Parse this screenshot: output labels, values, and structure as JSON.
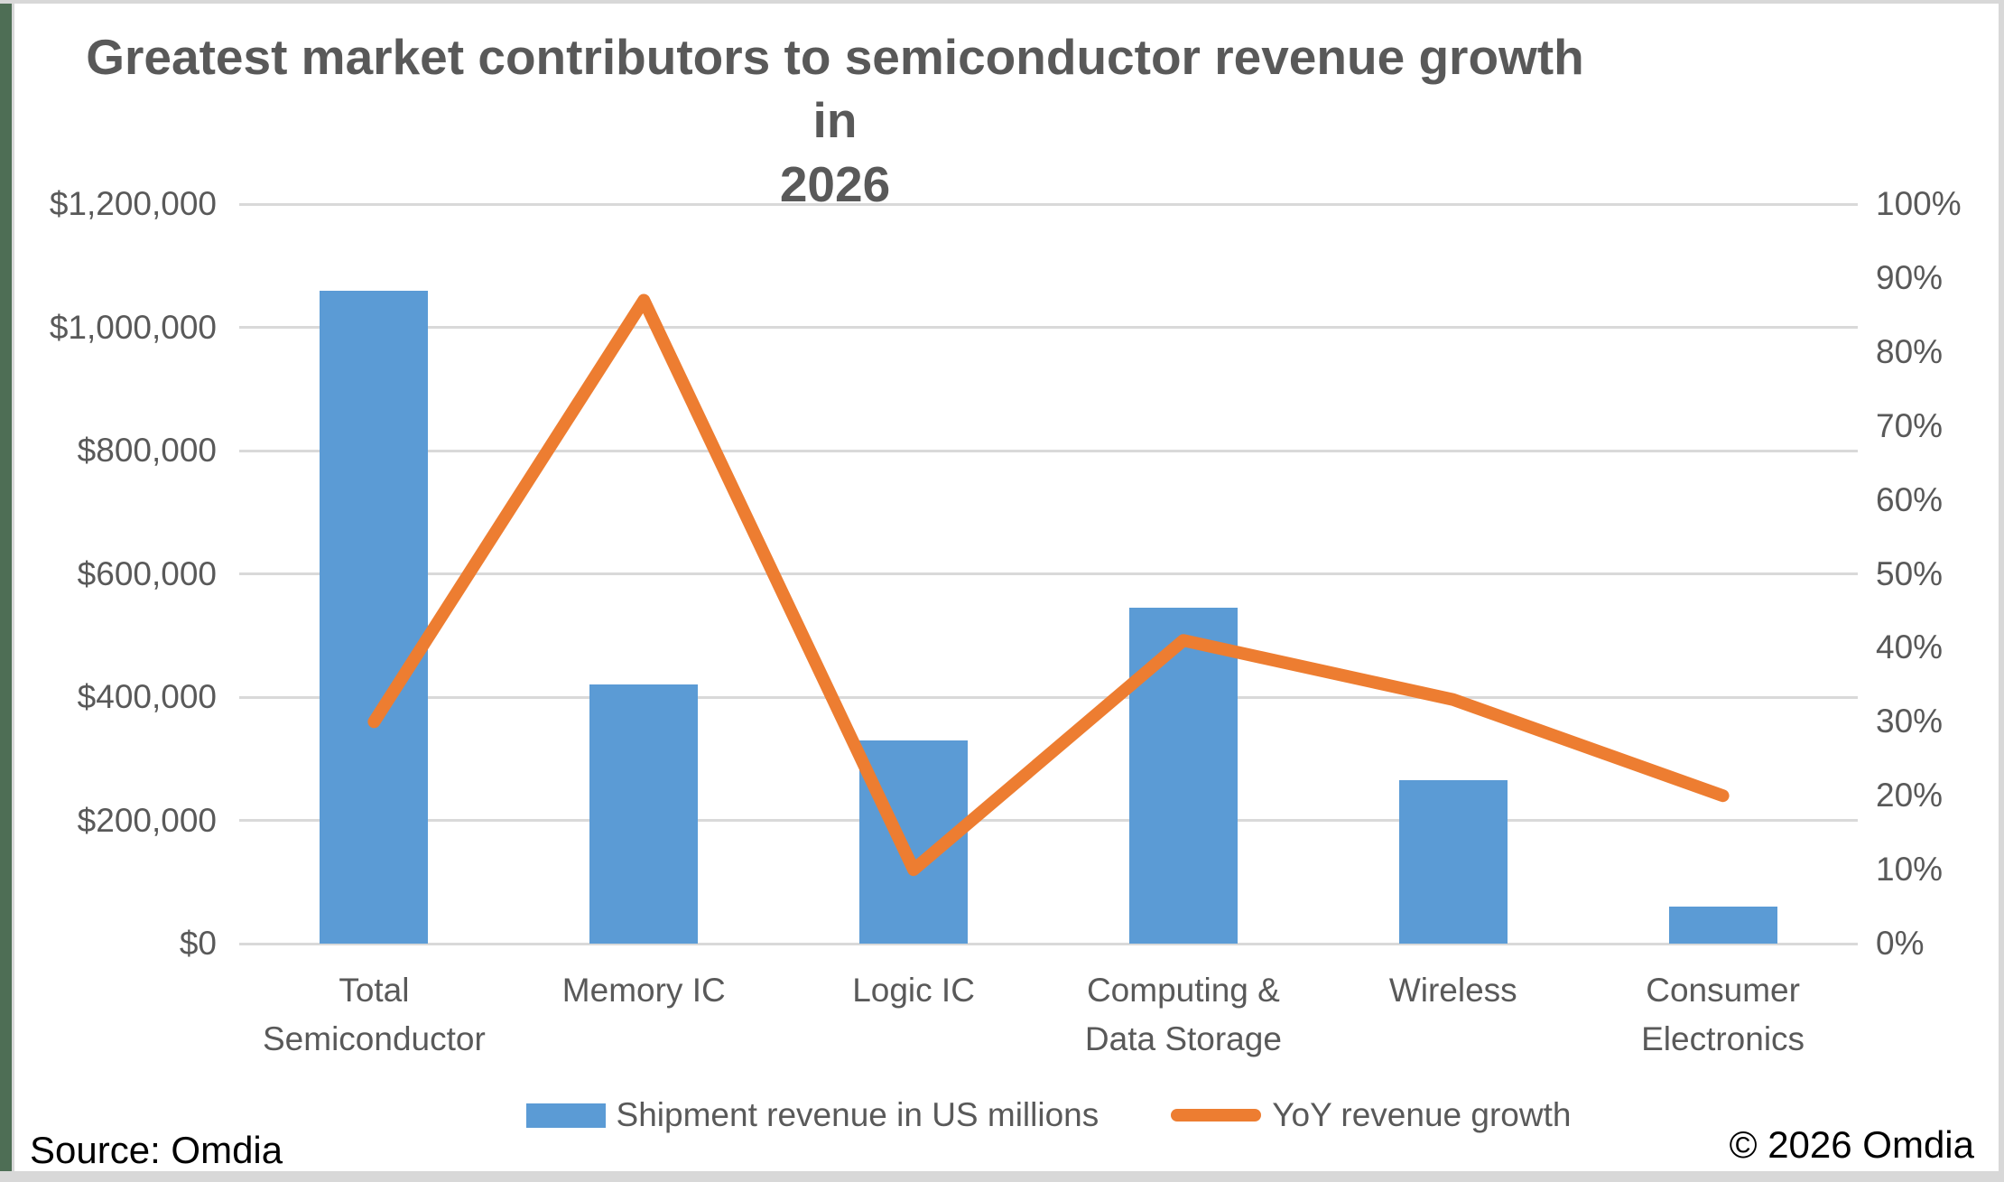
{
  "title_lines": [
    "Greatest market contributors to semiconductor revenue growth in",
    "2026"
  ],
  "chart_data": {
    "type": "combo",
    "title": "Greatest market contributors to semiconductor revenue growth in 2026",
    "categories": [
      "Total Semiconductor",
      "Memory IC",
      "Logic IC",
      "Computing & Data Storage",
      "Wireless",
      "Consumer Electronics"
    ],
    "series": [
      {
        "name": "Shipment revenue in US millions",
        "type": "bar",
        "axis": "left",
        "color": "#5B9BD5",
        "values": [
          1060000,
          420000,
          330000,
          545000,
          265000,
          60000
        ]
      },
      {
        "name": "YoY revenue growth",
        "type": "line",
        "axis": "right",
        "color": "#ED7D31",
        "values_pct": [
          30,
          87,
          10,
          41,
          33,
          20
        ]
      }
    ],
    "left_axis": {
      "min": 0,
      "max": 1200000,
      "step": 200000,
      "tick_labels": [
        "$1,200,000",
        "$1,000,000",
        "$800,000",
        "$600,000",
        "$400,000",
        "$200,000",
        "$0"
      ]
    },
    "right_axis": {
      "min": 0,
      "max": 100,
      "step": 10,
      "tick_labels": [
        "100%",
        "90%",
        "80%",
        "70%",
        "60%",
        "50%",
        "40%",
        "30%",
        "20%",
        "10%",
        "0%"
      ]
    },
    "grid": true,
    "legend_position": "bottom"
  },
  "footer": {
    "source": "Source: Omdia",
    "copyright": "© 2026 Omdia"
  },
  "colors": {
    "bar": "#5B9BD5",
    "line": "#ED7D31",
    "grid": "#D9D9D9",
    "text": "#595959",
    "footer_text": "#000000",
    "border": "#D8D8D8",
    "edge_green": "#4E6E55",
    "background": "#FFFFFF"
  }
}
